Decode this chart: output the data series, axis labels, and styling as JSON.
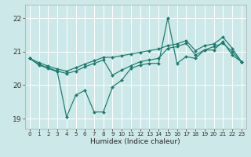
{
  "xlabel": "Humidex (Indice chaleur)",
  "xlim": [
    -0.5,
    23.5
  ],
  "ylim": [
    18.7,
    22.4
  ],
  "yticks": [
    19,
    20,
    21,
    22
  ],
  "xticks": [
    0,
    1,
    2,
    3,
    4,
    5,
    6,
    7,
    8,
    9,
    10,
    11,
    12,
    13,
    14,
    15,
    16,
    17,
    18,
    19,
    20,
    21,
    22,
    23
  ],
  "bg_color": "#cde8e8",
  "grid_color": "#ffffff",
  "line_color": "#1a7a6e",
  "lines": [
    [
      20.8,
      20.6,
      20.5,
      20.4,
      19.05,
      19.7,
      19.85,
      19.2,
      19.2,
      19.95,
      20.15,
      20.5,
      20.6,
      20.65,
      20.65,
      22.0,
      20.65,
      20.85,
      20.8,
      21.05,
      21.05,
      21.3,
      20.9,
      20.7
    ],
    [
      20.8,
      20.62,
      20.52,
      20.42,
      20.35,
      20.42,
      20.55,
      20.65,
      20.75,
      20.3,
      20.45,
      20.58,
      20.7,
      20.75,
      20.8,
      21.1,
      21.15,
      21.25,
      20.9,
      21.05,
      21.15,
      21.25,
      21.0,
      20.7
    ],
    [
      20.8,
      20.67,
      20.57,
      20.48,
      20.42,
      20.52,
      20.63,
      20.73,
      20.83,
      20.83,
      20.88,
      20.93,
      20.98,
      21.03,
      21.08,
      21.18,
      21.23,
      21.33,
      21.03,
      21.18,
      21.23,
      21.43,
      21.1,
      20.7
    ]
  ]
}
